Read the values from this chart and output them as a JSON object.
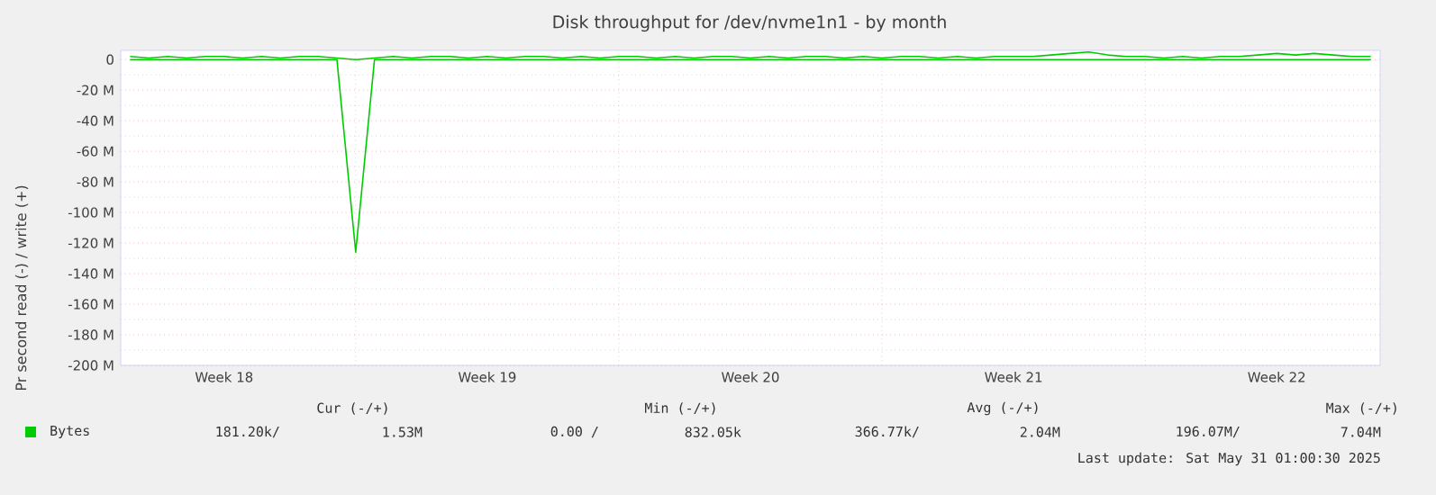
{
  "chart_data": {
    "type": "line",
    "title": "Disk throughput for /dev/nvme1n1 - by month",
    "ylabel": "Pr second read (-) / write (+)",
    "categories": [
      null,
      null,
      null,
      null,
      null,
      "Week 18",
      null,
      null,
      null,
      null,
      null,
      null,
      null,
      null,
      null,
      null,
      null,
      null,
      null,
      "Week 19",
      null,
      null,
      null,
      null,
      null,
      null,
      null,
      null,
      null,
      null,
      null,
      null,
      null,
      "Week 20",
      null,
      null,
      null,
      null,
      null,
      null,
      null,
      null,
      null,
      null,
      null,
      null,
      null,
      "Week 21",
      null,
      null,
      null,
      null,
      null,
      null,
      null,
      null,
      null,
      null,
      null,
      null,
      null,
      "Week 22",
      null,
      null,
      null,
      null,
      null
    ],
    "series": [
      {
        "name": "Bytes",
        "color": "#00cc00",
        "values": [
          2,
          1,
          2,
          1,
          2,
          2,
          1,
          2,
          1,
          2,
          2,
          1,
          0,
          1,
          2,
          1,
          2,
          2,
          1,
          2,
          1,
          2,
          2,
          1,
          2,
          1,
          2,
          2,
          1,
          2,
          1,
          2,
          2,
          1,
          2,
          1,
          2,
          2,
          1,
          2,
          1,
          2,
          2,
          1,
          2,
          1,
          2,
          2,
          2,
          3,
          4,
          5,
          3,
          2,
          2,
          1,
          2,
          1,
          2,
          2,
          3,
          4,
          3,
          4,
          3,
          2,
          2
        ]
      },
      {
        "color": "#00cc00",
        "values": [
          0,
          0,
          0,
          0,
          0,
          0,
          0,
          0,
          0,
          0,
          0,
          0,
          -126,
          0,
          0,
          0,
          0,
          0,
          0,
          0,
          0,
          0,
          0,
          0,
          0,
          0,
          0,
          0,
          0,
          0,
          0,
          0,
          0,
          0,
          0,
          0,
          0,
          0,
          0,
          0,
          0,
          0,
          0,
          0,
          0,
          0,
          0,
          0,
          0,
          0,
          0,
          0,
          0,
          0,
          0,
          0,
          0,
          0,
          0,
          0,
          0,
          0,
          0,
          0,
          0,
          0,
          0
        ]
      }
    ],
    "ylim": [
      -200,
      6
    ],
    "yticks": [
      0,
      {
        "value": -20,
        "label": "-20 M"
      },
      {
        "value": -40,
        "label": "-40 M"
      },
      {
        "value": -60,
        "label": "-60 M"
      },
      {
        "value": -80,
        "label": "-80 M"
      },
      {
        "value": -100,
        "label": "-100 M"
      },
      {
        "value": -120,
        "label": "-120 M"
      },
      {
        "value": -140,
        "label": "-140 M"
      },
      {
        "value": -160,
        "label": "-160 M"
      },
      {
        "value": -180,
        "label": "-180 M"
      },
      {
        "value": -200,
        "label": "-200 M"
      }
    ],
    "grid": true,
    "legend": "bottom",
    "annotations": [
      "Cur (-/+)",
      "Min (-/+)",
      "Avg (-/+)",
      "Max (-/+)",
      "181.20k/",
      "1.53M",
      "0.00 /",
      "832.05k",
      "366.77k/",
      "2.04M",
      "196.07M/",
      "7.04M",
      "Last update: Sat May 31 01:00:30 2025"
    ]
  }
}
